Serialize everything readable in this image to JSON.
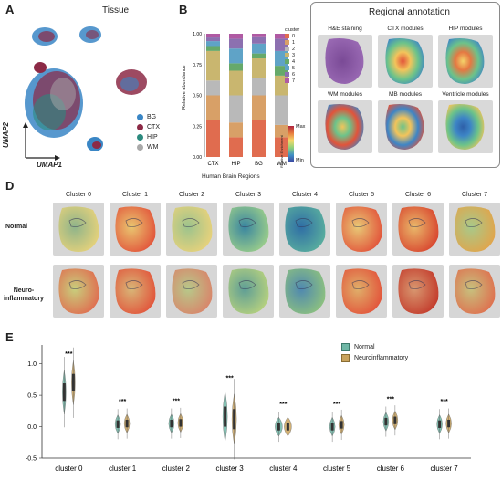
{
  "panelA": {
    "letter": "A",
    "title": "Tissue",
    "axis_x": "UMAP1",
    "axis_y": "UMAP2",
    "legend": [
      {
        "label": "BG",
        "color": "#3a86c5"
      },
      {
        "label": "CTX",
        "color": "#8c2a46"
      },
      {
        "label": "HIP",
        "color": "#2c8a7e"
      },
      {
        "label": "WM",
        "color": "#a9a9a9"
      }
    ]
  },
  "panelB": {
    "letter": "B",
    "ylabel": "Relative abundance",
    "xlabel": "Human Brain Regions",
    "legend_title": "cluster",
    "clusters": [
      "0",
      "1",
      "2",
      "3",
      "4",
      "5",
      "6",
      "7"
    ],
    "colors": [
      "#e06c4f",
      "#d8a067",
      "#b9b9b9",
      "#c9b66f",
      "#66a96a",
      "#5fa3c7",
      "#8c70b0",
      "#b05aa3"
    ],
    "colorbar": {
      "title": "Relative Enrichment",
      "max": "Max",
      "min": "Min"
    }
  },
  "panelC": {
    "letter": "C",
    "title": "Regional annotation",
    "thumbs": [
      "H&E staining",
      "CTX modules",
      "HIP modules",
      "WM modules",
      "MB modules",
      "Ventricle modules"
    ]
  },
  "panelD": {
    "letter": "D",
    "columns": [
      "Cluster 0",
      "Cluster 1",
      "Cluster 2",
      "Cluster 3",
      "Cluster 4",
      "Cluster 5",
      "Cluster 6",
      "Cluster 7"
    ],
    "rows": [
      "Normal",
      "Neuro-\ninflammatory"
    ]
  },
  "panelE": {
    "letter": "E",
    "legend": [
      {
        "label": "Normal",
        "color": "#6fb7a6"
      },
      {
        "label": "Neuroinflammatory",
        "color": "#c9a35c"
      }
    ],
    "significance": "***"
  },
  "chart_data": [
    {
      "type": "bar",
      "stacked": true,
      "categories": [
        "CTX",
        "HIP",
        "BG",
        "WM"
      ],
      "ylabel": "Relative abundance",
      "xlabel": "Human Brain Regions",
      "ylim": [
        0,
        1.0
      ],
      "yticks": [
        "0.00",
        "0.25",
        "0.50",
        "0.75",
        "1.00"
      ],
      "series": [
        {
          "name": "0",
          "values": [
            0.3,
            0.16,
            0.3,
            0.16
          ]
        },
        {
          "name": "1",
          "values": [
            0.2,
            0.12,
            0.2,
            0.1
          ]
        },
        {
          "name": "2",
          "values": [
            0.12,
            0.22,
            0.14,
            0.24
          ]
        },
        {
          "name": "3",
          "values": [
            0.24,
            0.2,
            0.16,
            0.16
          ]
        },
        {
          "name": "4",
          "values": [
            0.04,
            0.06,
            0.04,
            0.08
          ]
        },
        {
          "name": "5",
          "values": [
            0.04,
            0.12,
            0.08,
            0.12
          ]
        },
        {
          "name": "6",
          "values": [
            0.03,
            0.08,
            0.06,
            0.1
          ]
        },
        {
          "name": "7",
          "values": [
            0.03,
            0.04,
            0.02,
            0.04
          ]
        }
      ]
    },
    {
      "type": "violin",
      "categories": [
        "cluster 0",
        "cluster 1",
        "cluster 2",
        "cluster 3",
        "cluster 4",
        "cluster 5",
        "cluster 6",
        "cluster 7"
      ],
      "ylim": [
        -0.5,
        1.3
      ],
      "yticks": [
        "-0.5",
        "0.0",
        "0.5",
        "1.0"
      ],
      "series": [
        {
          "name": "Normal",
          "medians": [
            0.55,
            0.04,
            0.05,
            0.16,
            0.0,
            0.0,
            0.08,
            0.04
          ]
        },
        {
          "name": "Neuroinflammatory",
          "medians": [
            0.7,
            0.05,
            0.06,
            0.12,
            0.0,
            0.03,
            0.1,
            0.05
          ]
        }
      ]
    }
  ]
}
